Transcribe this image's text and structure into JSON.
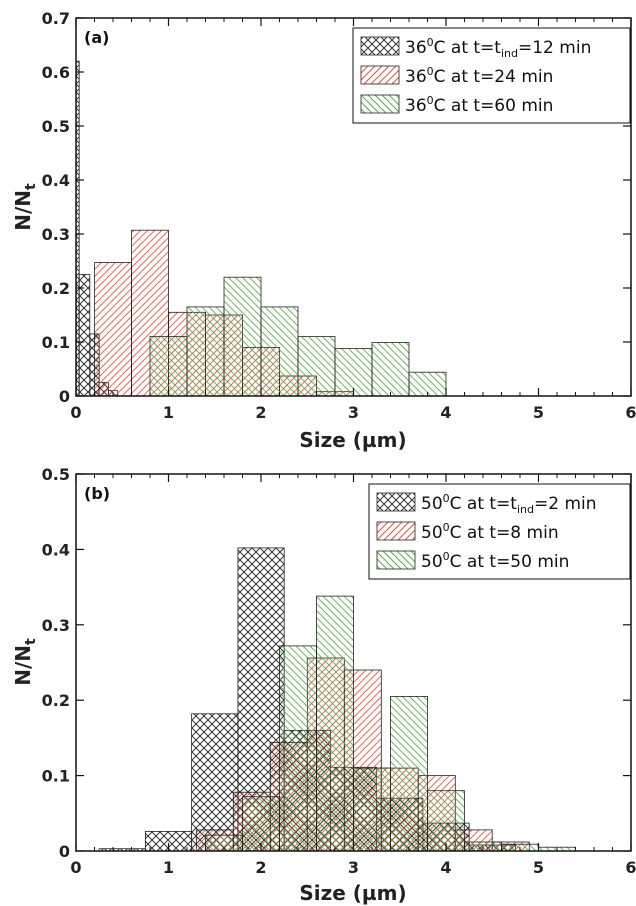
{
  "figure": {
    "panels": [
      {
        "panel_label": "(a)",
        "ylabel_main": "N/N",
        "ylabel_sub": "t",
        "xlabel": "Size (µm)"
      },
      {
        "panel_label": "(b)",
        "ylabel_main": "N/N",
        "ylabel_sub": "t",
        "xlabel": "Size (µm)"
      }
    ]
  },
  "colors": {
    "series_black": "#333333",
    "series_red": "#e05040",
    "series_green": "#5aa84a"
  },
  "chart_data": [
    {
      "type": "bar",
      "panel": "(a)",
      "xlim": [
        0,
        6
      ],
      "ylim": [
        0,
        0.7
      ],
      "xticks": [
        0,
        1,
        2,
        3,
        4,
        5,
        6
      ],
      "yticks": [
        0,
        0.1,
        0.2,
        0.3,
        0.4,
        0.5,
        0.6,
        0.7
      ],
      "ytick_labels": [
        "0",
        "0.1",
        "0.2",
        "0.3",
        "0.4",
        "0.5",
        "0.6",
        "0.7"
      ],
      "xtick_labels": [
        "0",
        "1",
        "2",
        "3",
        "4",
        "5",
        "6"
      ],
      "grid": false,
      "legend_position": "top-right",
      "series": [
        {
          "name": "36⁰C at t=t_ind=12 min",
          "legend_parts": [
            "36",
            "0",
            "C at t=t",
            "ind",
            "=12 min"
          ],
          "color": "#333333",
          "hatch": "crosshatch",
          "bins": [
            [
              0.0,
              0.035,
              0.62
            ],
            [
              0.035,
              0.15,
              0.225
            ],
            [
              0.15,
              0.25,
              0.115
            ],
            [
              0.25,
              0.35,
              0.025
            ],
            [
              0.35,
              0.45,
              0.01
            ]
          ]
        },
        {
          "name": "36⁰C at t=24 min",
          "legend_parts": [
            "36",
            "0",
            "C at t=24 min",
            "",
            ""
          ],
          "color": "#e05040",
          "hatch": "diagonal",
          "bins": [
            [
              0.2,
              0.6,
              0.247
            ],
            [
              0.6,
              1.0,
              0.307
            ],
            [
              1.0,
              1.4,
              0.155
            ],
            [
              1.4,
              1.8,
              0.15
            ],
            [
              1.8,
              2.2,
              0.09
            ],
            [
              2.2,
              2.6,
              0.037
            ],
            [
              2.6,
              3.0,
              0.008
            ]
          ]
        },
        {
          "name": "36⁰C at t=60 min",
          "legend_parts": [
            "36",
            "0",
            "C at t=60 min",
            "",
            ""
          ],
          "color": "#5aa84a",
          "hatch": "antidiagonal",
          "bins": [
            [
              0.8,
              1.2,
              0.11
            ],
            [
              1.2,
              1.6,
              0.165
            ],
            [
              1.6,
              2.0,
              0.22
            ],
            [
              2.0,
              2.4,
              0.165
            ],
            [
              2.4,
              2.8,
              0.11
            ],
            [
              2.8,
              3.2,
              0.088
            ],
            [
              3.2,
              3.6,
              0.099
            ],
            [
              3.6,
              4.0,
              0.044
            ]
          ]
        }
      ]
    },
    {
      "type": "bar",
      "panel": "(b)",
      "xlim": [
        0,
        6
      ],
      "ylim": [
        0,
        0.5
      ],
      "xticks": [
        0,
        1,
        2,
        3,
        4,
        5,
        6
      ],
      "yticks": [
        0,
        0.1,
        0.2,
        0.3,
        0.4,
        0.5
      ],
      "ytick_labels": [
        "0",
        "0.1",
        "0.2",
        "0.3",
        "0.4",
        "0.5"
      ],
      "xtick_labels": [
        "0",
        "1",
        "2",
        "3",
        "4",
        "5",
        "6"
      ],
      "grid": false,
      "legend_position": "top-right",
      "series": [
        {
          "name": "50⁰C at t=t_ind=2 min",
          "legend_parts": [
            "50",
            "0",
            "C at t=t",
            "ind",
            "=2 min"
          ],
          "color": "#333333",
          "hatch": "crosshatch",
          "bins": [
            [
              0.25,
              0.75,
              0.003
            ],
            [
              0.75,
              1.25,
              0.026
            ],
            [
              1.25,
              1.75,
              0.182
            ],
            [
              1.75,
              2.25,
              0.402
            ],
            [
              2.25,
              2.75,
              0.16
            ],
            [
              2.75,
              3.25,
              0.111
            ],
            [
              3.25,
              3.75,
              0.07
            ],
            [
              3.75,
              4.25,
              0.037
            ],
            [
              4.25,
              4.75,
              0.008
            ]
          ]
        },
        {
          "name": "50⁰C at t=8 min",
          "legend_parts": [
            "50",
            "0",
            "C at t=8 min",
            "",
            ""
          ],
          "color": "#e05040",
          "hatch": "diagonal",
          "bins": [
            [
              1.3,
              1.7,
              0.028
            ],
            [
              1.7,
              2.1,
              0.078
            ],
            [
              2.1,
              2.5,
              0.144
            ],
            [
              2.5,
              2.9,
              0.256
            ],
            [
              2.9,
              3.3,
              0.24
            ],
            [
              3.3,
              3.7,
              0.11
            ],
            [
              3.7,
              4.1,
              0.1
            ],
            [
              4.1,
              4.5,
              0.028
            ],
            [
              4.5,
              4.9,
              0.012
            ]
          ]
        },
        {
          "name": "50⁰C at t=50 min",
          "legend_parts": [
            "50",
            "0",
            "C at t=50 min",
            "",
            ""
          ],
          "color": "#5aa84a",
          "hatch": "antidiagonal",
          "bins": [
            [
              1.4,
              1.8,
              0.021
            ],
            [
              1.8,
              2.2,
              0.072
            ],
            [
              2.2,
              2.6,
              0.272
            ],
            [
              2.6,
              3.0,
              0.338
            ],
            [
              3.0,
              3.4,
              0.11
            ],
            [
              3.4,
              3.8,
              0.205
            ],
            [
              3.8,
              4.2,
              0.08
            ],
            [
              4.2,
              4.6,
              0.012
            ],
            [
              4.6,
              5.0,
              0.009
            ],
            [
              5.0,
              5.4,
              0.005
            ]
          ]
        }
      ]
    }
  ]
}
